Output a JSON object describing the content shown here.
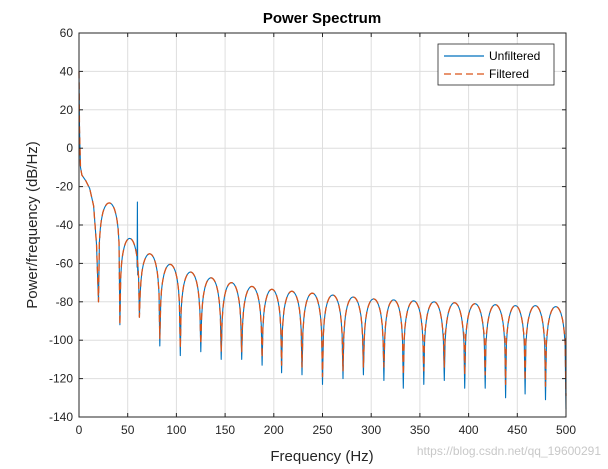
{
  "chart_data": {
    "type": "line",
    "title": "Power Spectrum",
    "xlabel": "Frequency (Hz)",
    "ylabel": "Power/frequency (dB/Hz)",
    "xlim": [
      0,
      500
    ],
    "ylim": [
      -140,
      60
    ],
    "xticks": [
      0,
      50,
      100,
      150,
      200,
      250,
      300,
      350,
      400,
      450,
      500
    ],
    "yticks": [
      -140,
      -120,
      -100,
      -80,
      -60,
      -40,
      -20,
      0,
      20,
      40,
      60
    ],
    "grid": true,
    "legend_position": "top-right",
    "series": [
      {
        "name": "Unfiltered",
        "color": "#0072bd",
        "style": "solid"
      },
      {
        "name": "Filtered",
        "color": "#d95319",
        "style": "dashed"
      }
    ],
    "peaks": {
      "x": [
        0,
        20,
        42,
        62,
        83,
        104,
        125,
        146,
        167,
        188,
        208,
        229,
        250,
        271,
        292,
        313,
        333,
        354,
        375,
        396,
        417,
        438,
        458,
        479,
        500
      ],
      "top_y": [
        40,
        -15,
        -42,
        -52,
        -58,
        -63,
        -66,
        -69,
        -71,
        -73,
        -74,
        -75,
        -76,
        -77,
        -78,
        -79,
        -79,
        -80,
        -80,
        -81,
        -81,
        -82,
        -82,
        -82,
        -83
      ],
      "null_depth_y": [
        -80,
        -92,
        -88,
        -103,
        -108,
        -106,
        -110,
        -110,
        -113,
        -117,
        -118,
        -123,
        -120,
        -118,
        -118,
        -122,
        -120,
        -118,
        -122,
        -122,
        -127,
        -125,
        -128,
        -133
      ]
    },
    "spike": {
      "x": 60,
      "y": -28,
      "series": "Unfiltered"
    }
  },
  "watermark": "https://blog.csdn.net/qq_19600291"
}
